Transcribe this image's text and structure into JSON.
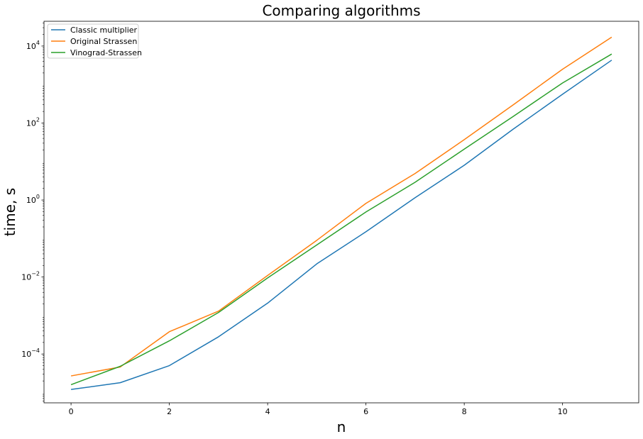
{
  "chart_data": {
    "type": "line",
    "title": "Comparing algorithms",
    "xlabel": "n",
    "ylabel": "time, s",
    "yscale": "log",
    "xlim": [
      -0.55,
      11.55
    ],
    "ylim": [
      5.4e-06,
      44000
    ],
    "grid": false,
    "legend_position": "top-left",
    "x": [
      0,
      1,
      2,
      3,
      4,
      5,
      6,
      7,
      8,
      9,
      10,
      11
    ],
    "x_ticks": [
      0,
      2,
      4,
      6,
      8,
      10
    ],
    "x_tick_labels": [
      "0",
      "2",
      "4",
      "6",
      "8",
      "10"
    ],
    "y_ticks": [
      0.0001,
      0.01,
      1,
      100,
      10000
    ],
    "y_tick_labels": [
      {
        "base": "10",
        "exp": "−4"
      },
      {
        "base": "10",
        "exp": "−2"
      },
      {
        "base": "10",
        "exp": "0"
      },
      {
        "base": "10",
        "exp": "2"
      },
      {
        "base": "10",
        "exp": "4"
      }
    ],
    "series": [
      {
        "name": "Classic multiplier",
        "color": "#1f77b4",
        "values": [
          1.2e-05,
          1.8e-05,
          5e-05,
          0.00028,
          0.0021,
          0.022,
          0.15,
          1.15,
          8.0,
          70,
          560,
          4300
        ]
      },
      {
        "name": "Original Strassen",
        "color": "#ff7f0e",
        "values": [
          2.7e-05,
          4.6e-05,
          0.00038,
          0.0013,
          0.011,
          0.09,
          0.82,
          4.9,
          37,
          300,
          2500,
          17000
        ]
      },
      {
        "name": "Vinograd-Strassen",
        "color": "#2ca02c",
        "values": [
          1.6e-05,
          4.8e-05,
          0.00022,
          0.0012,
          0.0095,
          0.068,
          0.49,
          2.9,
          21,
          150,
          1100,
          6200
        ]
      }
    ]
  }
}
